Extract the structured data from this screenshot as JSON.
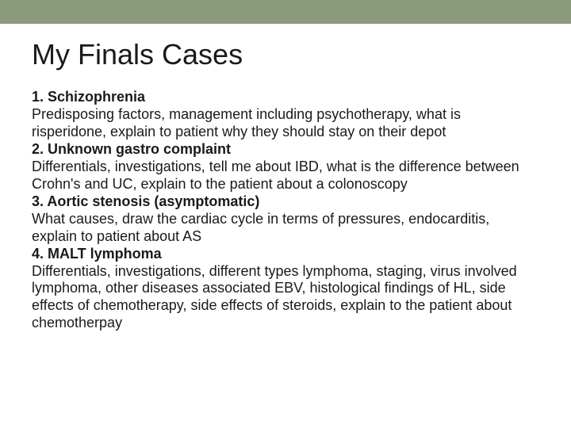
{
  "colors": {
    "topbar": "#8a9a7a",
    "background": "#ffffff",
    "text": "#1a1a1a"
  },
  "typography": {
    "title_fontsize": 36,
    "body_fontsize": 18,
    "font_family": "Arial"
  },
  "title": "My Finals Cases",
  "cases": [
    {
      "heading": "1. Schizophrenia",
      "body": "Predisposing factors, management including psychotherapy, what is risperidone, explain to patient why they should stay on their depot"
    },
    {
      "heading": "2. Unknown gastro complaint",
      "body": "Differentials, investigations, tell me about IBD, what is the difference between Crohn's and UC, explain to the patient about a colonoscopy"
    },
    {
      "heading": "3. Aortic stenosis (asymptomatic)",
      "body": "What causes, draw the cardiac cycle in terms of pressures, endocarditis, explain to patient about AS"
    },
    {
      "heading": "4. MALT lymphoma",
      "body": "Differentials, investigations, different types lymphoma, staging, virus involved lymphoma, other diseases associated EBV, histological findings of HL, side effects of chemotherapy, side effects of steroids, explain to the patient about chemotherpay"
    }
  ]
}
